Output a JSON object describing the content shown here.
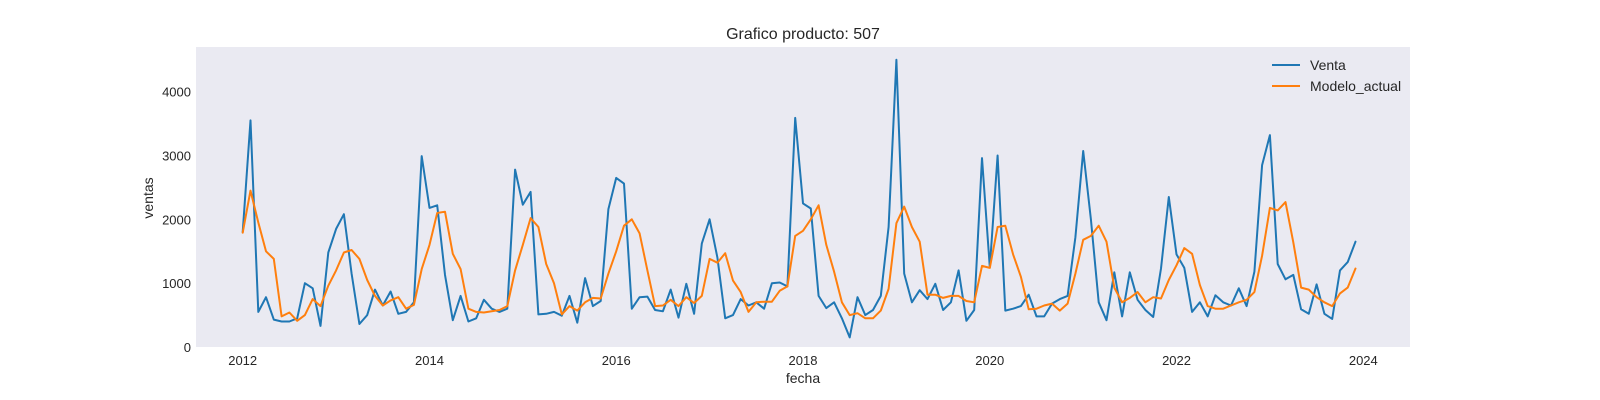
{
  "chart_data": {
    "type": "line",
    "title": "Grafico producto: 507",
    "xlabel": "fecha",
    "ylabel": "ventas",
    "x_start": "2012-01",
    "x_frequency": "monthly",
    "xlim": [
      2011.5,
      2024.5
    ],
    "ylim": [
      0,
      4700
    ],
    "x_ticks": [
      2012,
      2014,
      2016,
      2018,
      2020,
      2022,
      2024
    ],
    "x_tick_labels": [
      "2012",
      "2014",
      "2016",
      "2018",
      "2020",
      "2022",
      "2024"
    ],
    "y_ticks": [
      0,
      1000,
      2000,
      3000,
      4000
    ],
    "y_tick_labels": [
      "0",
      "1000",
      "2000",
      "3000",
      "4000"
    ],
    "grid": false,
    "legend_position": "top-right",
    "background": "#eaeaf2",
    "series": [
      {
        "name": "Venta",
        "color": "#1f77b4",
        "values": [
          1800,
          3550,
          550,
          780,
          430,
          400,
          400,
          450,
          1000,
          920,
          330,
          1480,
          1850,
          2080,
          1150,
          360,
          500,
          900,
          650,
          870,
          520,
          550,
          700,
          2990,
          2180,
          2220,
          1130,
          420,
          800,
          400,
          450,
          740,
          600,
          550,
          600,
          2780,
          2230,
          2430,
          510,
          520,
          550,
          490,
          800,
          380,
          1080,
          640,
          720,
          2160,
          2650,
          2560,
          600,
          780,
          790,
          580,
          560,
          900,
          460,
          990,
          520,
          1620,
          2000,
          1400,
          450,
          500,
          750,
          650,
          700,
          600,
          1000,
          1010,
          950,
          3590,
          2250,
          2170,
          800,
          610,
          700,
          450,
          150,
          780,
          500,
          580,
          800,
          1880,
          4500,
          1150,
          700,
          890,
          750,
          990,
          580,
          700,
          1200,
          410,
          580,
          2960,
          1250,
          3000,
          570,
          600,
          640,
          820,
          480,
          480,
          680,
          750,
          800,
          1720,
          3070,
          2000,
          700,
          420,
          1170,
          480,
          1170,
          740,
          580,
          470,
          1230,
          2350,
          1450,
          1240,
          550,
          700,
          480,
          810,
          700,
          650,
          920,
          640,
          1180,
          2850,
          3320,
          1300,
          1060,
          1130,
          590,
          520,
          980,
          520,
          440,
          1200,
          1330,
          1650
        ]
      },
      {
        "name": "Modelo_actual",
        "color": "#ff7f0e",
        "values": [
          1790,
          2450,
          1950,
          1500,
          1380,
          480,
          540,
          410,
          500,
          750,
          640,
          960,
          1200,
          1480,
          1520,
          1380,
          1050,
          800,
          650,
          730,
          780,
          600,
          660,
          1220,
          1600,
          2100,
          2120,
          1460,
          1220,
          600,
          550,
          540,
          560,
          580,
          640,
          1200,
          1600,
          2020,
          1880,
          1300,
          1000,
          510,
          640,
          570,
          700,
          770,
          760,
          1150,
          1500,
          1900,
          2000,
          1780,
          1200,
          640,
          650,
          740,
          640,
          780,
          690,
          800,
          1380,
          1320,
          1470,
          1040,
          860,
          550,
          700,
          710,
          710,
          880,
          950,
          1740,
          1820,
          2000,
          2220,
          1600,
          1180,
          700,
          500,
          530,
          450,
          450,
          570,
          910,
          1940,
          2200,
          1880,
          1650,
          820,
          820,
          770,
          800,
          800,
          720,
          700,
          1270,
          1240,
          1880,
          1900,
          1450,
          1100,
          590,
          600,
          650,
          680,
          570,
          680,
          1150,
          1680,
          1740,
          1900,
          1650,
          930,
          700,
          770,
          860,
          700,
          780,
          760,
          1050,
          1280,
          1550,
          1460,
          970,
          640,
          600,
          600,
          650,
          700,
          740,
          860,
          1430,
          2180,
          2140,
          2270,
          1640,
          930,
          900,
          780,
          700,
          640,
          840,
          930,
          1230
        ]
      }
    ]
  }
}
